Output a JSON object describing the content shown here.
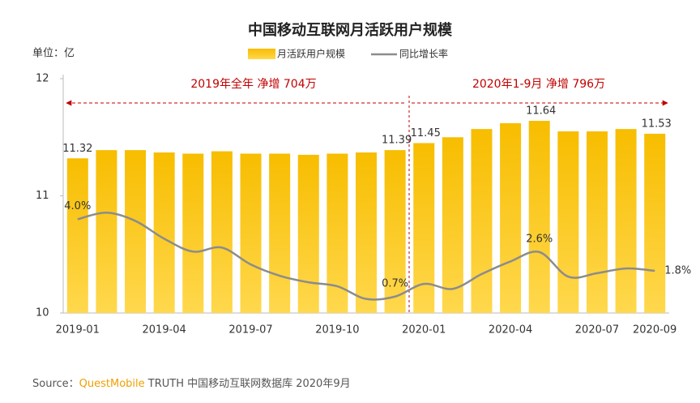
{
  "chart_data": {
    "type": "bar-line",
    "title": "中国移动互联网月活跃用户规模",
    "unit_label": "单位：亿",
    "categories": [
      "2019-01",
      null,
      null,
      "2019-04",
      null,
      null,
      "2019-07",
      null,
      null,
      "2019-10",
      null,
      null,
      "2020-01",
      null,
      null,
      "2020-04",
      null,
      null,
      "2020-07",
      null,
      "2020-09"
    ],
    "series": [
      {
        "name": "月活跃用户规模",
        "color": "#f7bd00",
        "values": [
          11.32,
          11.39,
          11.39,
          11.37,
          11.36,
          11.38,
          11.36,
          11.36,
          11.35,
          11.36,
          11.37,
          11.39,
          11.45,
          11.5,
          11.57,
          11.62,
          11.64,
          11.55,
          11.55,
          11.57,
          11.53
        ],
        "value_labels": [
          "11.32",
          null,
          null,
          null,
          null,
          null,
          null,
          null,
          null,
          null,
          null,
          "11.39",
          "11.45",
          null,
          null,
          null,
          "11.64",
          null,
          null,
          null,
          "11.53"
        ]
      },
      {
        "name": "同比增长率",
        "color": "#8c8c8c",
        "axis": "y2",
        "values": [
          4.0,
          4.28,
          3.93,
          3.17,
          2.62,
          2.79,
          2.07,
          1.59,
          1.31,
          1.14,
          0.6,
          0.7,
          1.24,
          1.03,
          1.66,
          2.2,
          2.6,
          1.55,
          1.7,
          1.9,
          1.8
        ],
        "value_labels": [
          "4.0%",
          null,
          null,
          null,
          null,
          null,
          null,
          null,
          null,
          null,
          null,
          "0.7%",
          null,
          null,
          null,
          null,
          "2.6%",
          null,
          null,
          null,
          "1.8%"
        ]
      }
    ],
    "ylim": [
      10,
      12
    ],
    "yticks": [
      10,
      11,
      12
    ],
    "y2lim": [
      0,
      10
    ],
    "annotations": [
      "2019年全年 净增 704万",
      "2020年1-9月  净增 796万"
    ],
    "source": [
      "Source：",
      "QuestMobile",
      " TRUTH 中国移动互联网数据库 2020年9月"
    ]
  }
}
